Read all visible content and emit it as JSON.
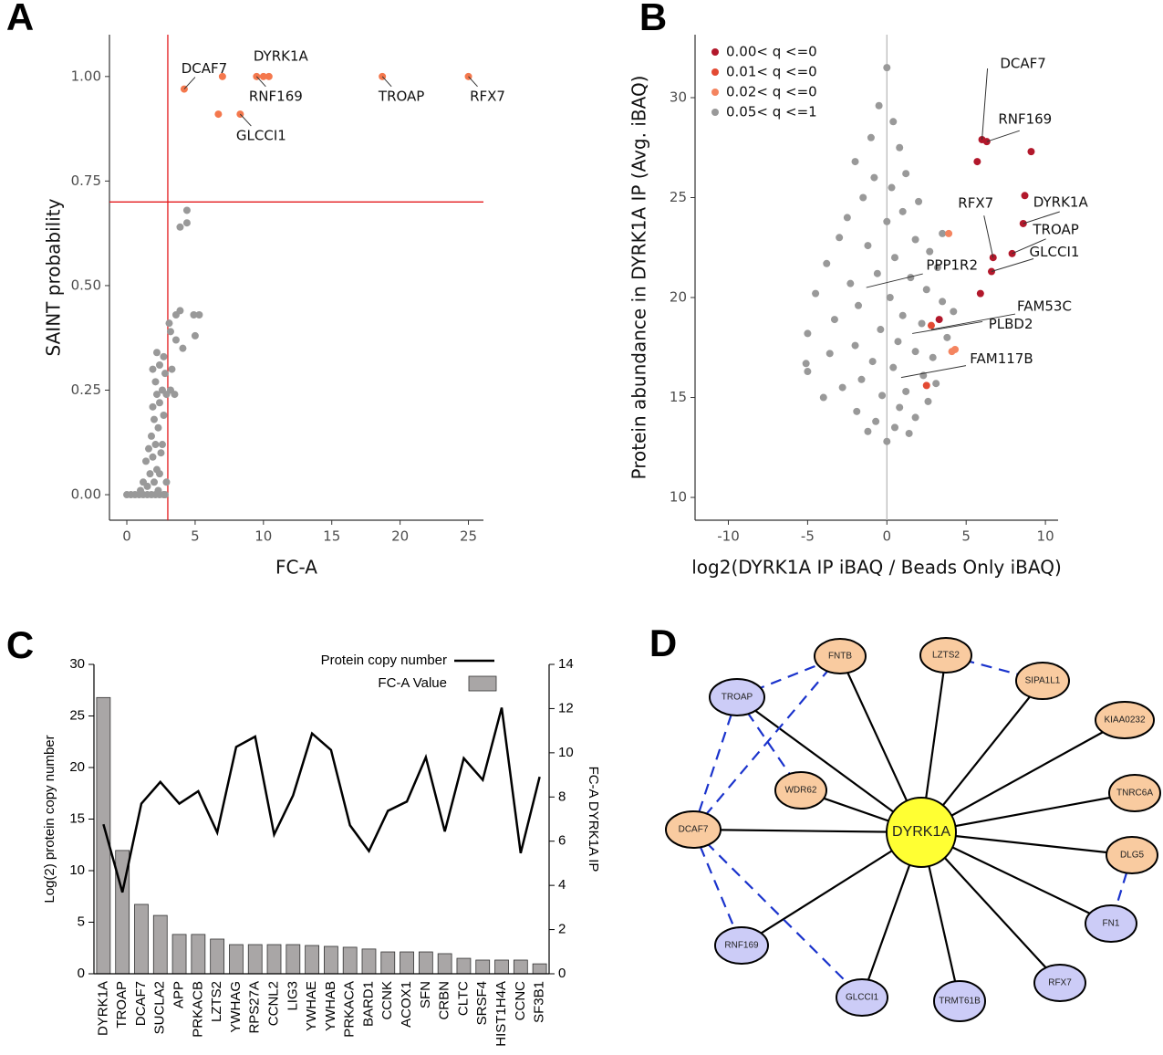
{
  "chart_data": [
    {
      "panel": "A",
      "type": "scatter",
      "xlabel": "FC-A",
      "ylabel": "SAINT probability",
      "xlim": [
        -1.27,
        26.1
      ],
      "ylim": [
        -0.061,
        1.1
      ],
      "xticks": [
        0,
        5,
        10,
        15,
        20,
        25
      ],
      "yticks": [
        {
          "value": 0,
          "label": "0.00"
        },
        {
          "value": 0.25,
          "label": "0.25"
        },
        {
          "value": 0.5,
          "label": "0.50"
        },
        {
          "value": 0.75,
          "label": "0.75"
        },
        {
          "value": 1,
          "label": "1.00"
        }
      ],
      "vline": 3,
      "hline": 0.7,
      "ref_color": "#e41a1c",
      "series": [
        {
          "color": "#999999",
          "x": [
            0,
            0.3,
            0.6,
            0.9,
            1.2,
            1.5,
            1.8,
            2.1,
            2.4,
            2.7,
            1,
            1.5,
            2,
            2.3,
            1.2,
            1.7,
            2.2,
            1.4,
            1.9,
            2.5,
            1.6,
            2.1,
            2.6,
            1.8,
            2.3,
            2,
            2.7,
            1.9,
            2.4,
            2.2,
            2.9,
            2.6,
            2.1,
            2.8,
            1.9,
            2.4,
            2.7,
            2.2,
            3.2,
            3.5,
            3.3,
            3.6,
            3.2,
            3.1,
            3.6,
            3.9,
            4.1,
            4.9,
            5.3,
            5,
            3.9,
            4.4,
            4.4,
            2.4,
            2.8,
            2.9
          ],
          "values": [
            0,
            0,
            0,
            0,
            0,
            0,
            0,
            0,
            0,
            0,
            0.01,
            0.02,
            0.03,
            0.01,
            0.03,
            0.05,
            0.06,
            0.08,
            0.09,
            0.1,
            0.11,
            0.12,
            0.12,
            0.14,
            0.16,
            0.18,
            0.19,
            0.21,
            0.22,
            0.24,
            0.24,
            0.25,
            0.27,
            0.29,
            0.3,
            0.31,
            0.33,
            0.34,
            0.25,
            0.24,
            0.3,
            0.37,
            0.39,
            0.41,
            0.43,
            0.44,
            0.35,
            0.43,
            0.43,
            0.38,
            0.64,
            0.65,
            0.68,
            0.05,
            0,
            0.03
          ]
        },
        {
          "color": "#f4784d",
          "x": [
            4.2,
            6.7,
            7,
            8.3,
            9.5,
            10,
            10.4,
            18.7,
            25
          ],
          "values": [
            0.97,
            0.91,
            1,
            0.91,
            1,
            1,
            1,
            1,
            1
          ]
        }
      ],
      "annotations": [
        {
          "text": "DCAF7",
          "x": 4.2,
          "y": 0.97
        },
        {
          "text": "DYRK1A",
          "x": 10,
          "y": 1
        },
        {
          "text": "RNF169",
          "x": 9.5,
          "y": 1
        },
        {
          "text": "GLCCI1",
          "x": 8.3,
          "y": 0.91
        },
        {
          "text": "TROAP",
          "x": 18.7,
          "y": 1
        },
        {
          "text": "RFX7",
          "x": 25,
          "y": 1
        }
      ]
    },
    {
      "panel": "B",
      "type": "scatter",
      "xlabel": "log2(DYRK1A IP iBAQ / Beads Only iBAQ)",
      "ylabel": "Protein abundance in DYRK1A IP (Avg. iBAQ)",
      "xlim": [
        -12.1,
        10.8
      ],
      "ylim": [
        8.86,
        33.15
      ],
      "xticks": [
        -10,
        -5,
        0,
        5,
        10
      ],
      "yticks": [
        10,
        15,
        20,
        25,
        30
      ],
      "vline": 0,
      "ref_color": "#bbbbbb",
      "legend": "top-left",
      "series": [
        {
          "name": "0.00< q <=0",
          "color": "#b2182b",
          "x": [
            6,
            6.3,
            5.7,
            9.1,
            8.7,
            8.6,
            7.9,
            6.7,
            6.6,
            5.9,
            3.3
          ],
          "values": [
            27.9,
            27.8,
            26.8,
            27.3,
            25.1,
            23.7,
            22.2,
            22,
            21.3,
            20.2,
            18.9
          ]
        },
        {
          "name": "0.01< q <=0",
          "color": "#e34a33",
          "x": [
            2.5,
            2.8
          ],
          "values": [
            15.6,
            18.6
          ]
        },
        {
          "name": "0.02< q <=0",
          "color": "#f4845f",
          "x": [
            3.9,
            4.1,
            4.3
          ],
          "values": [
            23.2,
            17.3,
            17.4
          ]
        },
        {
          "name": "0.05< q <=1",
          "color": "#999999",
          "x": [
            0,
            -0.5,
            0.4,
            -1,
            0.8,
            -2,
            1.2,
            -0.8,
            0.3,
            -1.5,
            2,
            1,
            -2.5,
            0,
            3.5,
            -3,
            1.8,
            -1.2,
            2.7,
            0.5,
            -3.8,
            3.2,
            -0.6,
            1.5,
            -2.3,
            2.5,
            -4.5,
            0.2,
            3.5,
            -1.8,
            4.2,
            1,
            -3.3,
            2.2,
            -0.4,
            -5,
            3.8,
            0.7,
            -2,
            1.8,
            -3.6,
            2.9,
            -0.9,
            0.4,
            -5.1,
            -5,
            2.3,
            -1.6,
            3.1,
            -2.8,
            1.2,
            -0.3,
            -4,
            2.6,
            0.8,
            -1.9,
            1.8,
            -0.7,
            0.5,
            -1.2,
            1.4,
            0
          ],
          "values": [
            31.5,
            29.6,
            28.8,
            28,
            27.5,
            26.8,
            26.2,
            26,
            25.5,
            25,
            24.8,
            24.3,
            24,
            23.8,
            23.2,
            23,
            22.9,
            22.6,
            22.3,
            22,
            21.7,
            21.5,
            21.2,
            21,
            20.7,
            20.4,
            20.2,
            20,
            19.8,
            19.6,
            19.3,
            19.1,
            18.9,
            18.7,
            18.4,
            18.2,
            18,
            17.8,
            17.6,
            17.3,
            17.2,
            17,
            16.8,
            16.5,
            16.7,
            16.3,
            16.1,
            15.9,
            15.7,
            15.5,
            15.3,
            15.1,
            15,
            14.8,
            14.5,
            14.3,
            14,
            13.8,
            13.5,
            13.3,
            13.2,
            12.8
          ]
        }
      ],
      "annotations": [
        {
          "text": "DCAF7",
          "x": 6,
          "y": 27.9
        },
        {
          "text": "RNF169",
          "x": 6.3,
          "y": 27.8
        },
        {
          "text": "DYRK1A",
          "x": 8.6,
          "y": 23.7
        },
        {
          "text": "TROAP",
          "x": 7.9,
          "y": 22.2
        },
        {
          "text": "RFX7",
          "x": 6.7,
          "y": 22
        },
        {
          "text": "GLCCI1",
          "x": 6.6,
          "y": 21.3
        },
        {
          "text": "PPP1R2",
          "x": -1.3,
          "y": 20.5
        },
        {
          "text": "FAM53C",
          "x": 2.8,
          "y": 18.4
        },
        {
          "text": "PLBD2",
          "x": 1.6,
          "y": 18.2
        },
        {
          "text": "FAM117B",
          "x": 0.9,
          "y": 16
        }
      ]
    },
    {
      "panel": "C",
      "type": "bar",
      "ylabel": "Log(2) protein copy number",
      "y2label": "FC-A DYRK1A IP",
      "categories": [
        "DYRK1A",
        "TROAP",
        "DCAF7",
        "SUCLA2",
        "APP",
        "PRKACB",
        "LZTS2",
        "YWHAG",
        "RPS27A",
        "CCNL2",
        "LIG3",
        "YWHAE",
        "YWHAB",
        "PRKACA",
        "BARD1",
        "CCNK",
        "ACOX1",
        "SFN",
        "CRBN",
        "CLTC",
        "SRSF4",
        "HIST1H4A",
        "CCNC",
        "SF3B1"
      ],
      "ylim": [
        0,
        30
      ],
      "yticks": [
        0,
        5,
        10,
        15,
        20,
        25,
        30
      ],
      "y2lim": [
        0,
        14
      ],
      "y2ticks": [
        0,
        2,
        4,
        6,
        8,
        10,
        12,
        14
      ],
      "legend": "top-right",
      "series": [
        {
          "name": "Protein copy number",
          "type": "line",
          "color": "#000000",
          "values": [
            14.5,
            7.9,
            16.5,
            18.6,
            16.5,
            17.7,
            13.7,
            22,
            23,
            13.5,
            17.3,
            23.3,
            21.7,
            14.4,
            11.9,
            15.8,
            16.7,
            21,
            13.8,
            20.9,
            18.8,
            25.8,
            11.7,
            19.1
          ]
        },
        {
          "name": "FC-A Value",
          "type": "bar",
          "axis": "y2",
          "color": "#a9a6a6",
          "values": [
            12.5,
            5.58,
            3.14,
            2.64,
            1.78,
            1.78,
            1.57,
            1.32,
            1.32,
            1.32,
            1.32,
            1.28,
            1.24,
            1.2,
            1.12,
            0.99,
            0.99,
            0.99,
            0.91,
            0.7,
            0.62,
            0.62,
            0.62,
            0.45
          ]
        }
      ]
    }
  ],
  "diagram": {
    "panel": "D",
    "nodes": [
      "DYRK1A",
      "TROAP",
      "FNTB",
      "LZTS2",
      "SIPA1L1",
      "KIAA0232",
      "TNRC6A",
      "DLG5",
      "FN1",
      "RFX7",
      "TRMT61B",
      "GLCCI1",
      "RNF169",
      "DCAF7",
      "WDR62"
    ]
  }
}
